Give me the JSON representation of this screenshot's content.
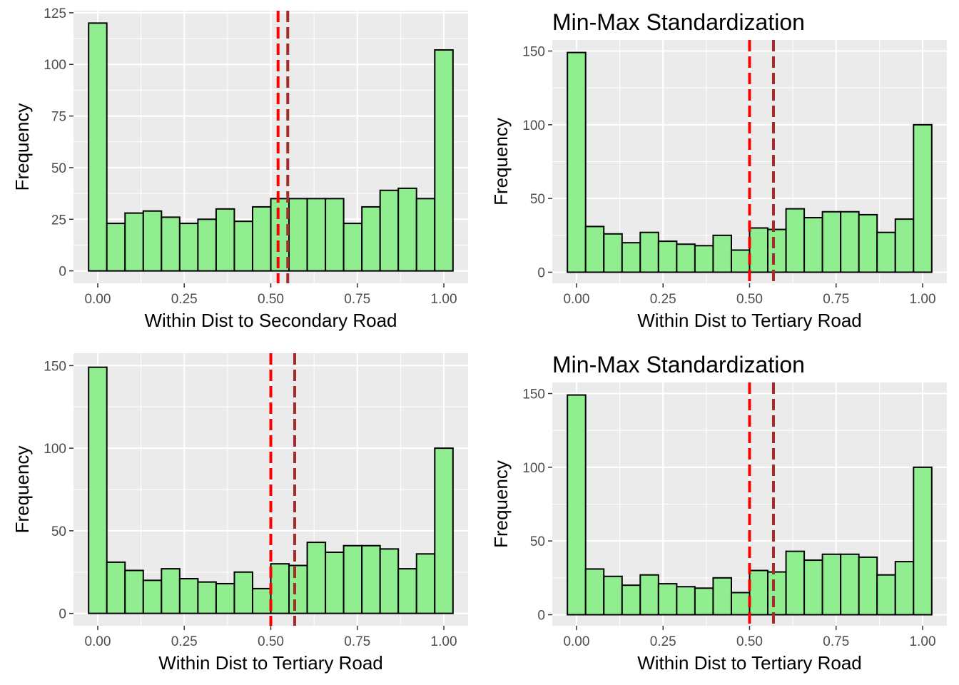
{
  "chart_data": [
    {
      "type": "bar",
      "title": "",
      "xlabel": "Within Dist to Secondary Road",
      "ylabel": "Frequency",
      "xlim": [
        -0.07,
        1.07
      ],
      "ylim": [
        -6,
        126
      ],
      "x_ticks": [
        "0.00",
        "0.25",
        "0.50",
        "0.75",
        "1.00"
      ],
      "x_tick_values": [
        0,
        0.25,
        0.5,
        0.75,
        1
      ],
      "y_ticks": [
        "0",
        "25",
        "50",
        "75",
        "100",
        "125"
      ],
      "y_tick_values": [
        0,
        25,
        50,
        75,
        100,
        125
      ],
      "bin_width": 0.0526,
      "bin_centers": [
        0,
        0.0526,
        0.1053,
        0.1579,
        0.2105,
        0.2632,
        0.3158,
        0.3684,
        0.4211,
        0.4737,
        0.5263,
        0.5789,
        0.6316,
        0.6842,
        0.7368,
        0.7895,
        0.8421,
        0.8947,
        0.9474,
        1.0
      ],
      "values": [
        120,
        23,
        28,
        29,
        26,
        23,
        25,
        30,
        24,
        31,
        35,
        35,
        35,
        35,
        23,
        31,
        39,
        40,
        35,
        107
      ],
      "vlines": [
        {
          "x": 0.521,
          "color": "#ff0000",
          "style": "dashed"
        },
        {
          "x": 0.549,
          "color": "#a52a2a",
          "style": "dashed"
        }
      ],
      "colors": {
        "fill": "#90ee90",
        "outline": "#000000",
        "panel": "#ebebeb",
        "grid": "#ffffff"
      },
      "grid": true
    },
    {
      "type": "bar",
      "title": "Min-Max Standardization",
      "xlabel": "Within Dist to Tertiary Road",
      "ylabel": "Frequency",
      "xlim": [
        -0.07,
        1.07
      ],
      "ylim": [
        -7.5,
        157.5
      ],
      "x_ticks": [
        "0.00",
        "0.25",
        "0.50",
        "0.75",
        "1.00"
      ],
      "x_tick_values": [
        0,
        0.25,
        0.5,
        0.75,
        1
      ],
      "y_ticks": [
        "0",
        "50",
        "100",
        "150"
      ],
      "y_tick_values": [
        0,
        50,
        100,
        150
      ],
      "bin_width": 0.0526,
      "bin_centers": [
        0,
        0.0526,
        0.1053,
        0.1579,
        0.2105,
        0.2632,
        0.3158,
        0.3684,
        0.4211,
        0.4737,
        0.5263,
        0.5789,
        0.6316,
        0.6842,
        0.7368,
        0.7895,
        0.8421,
        0.8947,
        0.9474,
        1.0
      ],
      "values": [
        149,
        31,
        26,
        20,
        27,
        21,
        19,
        18,
        25,
        15,
        30,
        29,
        43,
        37,
        41,
        41,
        39,
        27,
        36,
        100
      ],
      "vlines": [
        {
          "x": 0.5,
          "color": "#ff0000",
          "style": "dashed"
        },
        {
          "x": 0.569,
          "color": "#a52a2a",
          "style": "dashed"
        }
      ],
      "colors": {
        "fill": "#90ee90",
        "outline": "#000000",
        "panel": "#ebebeb",
        "grid": "#ffffff"
      },
      "grid": true
    },
    {
      "type": "bar",
      "title": "",
      "xlabel": "Within Dist to Tertiary Road",
      "ylabel": "Frequency",
      "xlim": [
        -0.07,
        1.07
      ],
      "ylim": [
        -7.5,
        157.5
      ],
      "x_ticks": [
        "0.00",
        "0.25",
        "0.50",
        "0.75",
        "1.00"
      ],
      "x_tick_values": [
        0,
        0.25,
        0.5,
        0.75,
        1
      ],
      "y_ticks": [
        "0",
        "50",
        "100",
        "150"
      ],
      "y_tick_values": [
        0,
        50,
        100,
        150
      ],
      "bin_width": 0.0526,
      "bin_centers": [
        0,
        0.0526,
        0.1053,
        0.1579,
        0.2105,
        0.2632,
        0.3158,
        0.3684,
        0.4211,
        0.4737,
        0.5263,
        0.5789,
        0.6316,
        0.6842,
        0.7368,
        0.7895,
        0.8421,
        0.8947,
        0.9474,
        1.0
      ],
      "values": [
        149,
        31,
        26,
        20,
        27,
        21,
        19,
        18,
        25,
        15,
        30,
        29,
        43,
        37,
        41,
        41,
        39,
        27,
        36,
        100
      ],
      "vlines": [
        {
          "x": 0.5,
          "color": "#ff0000",
          "style": "dashed"
        },
        {
          "x": 0.569,
          "color": "#a52a2a",
          "style": "dashed"
        }
      ],
      "colors": {
        "fill": "#90ee90",
        "outline": "#000000",
        "panel": "#ebebeb",
        "grid": "#ffffff"
      },
      "grid": true
    },
    {
      "type": "bar",
      "title": "Min-Max Standardization",
      "xlabel": "Within Dist to Tertiary Road",
      "ylabel": "Frequency",
      "xlim": [
        -0.07,
        1.07
      ],
      "ylim": [
        -7.5,
        157.5
      ],
      "x_ticks": [
        "0.00",
        "0.25",
        "0.50",
        "0.75",
        "1.00"
      ],
      "x_tick_values": [
        0,
        0.25,
        0.5,
        0.75,
        1
      ],
      "y_ticks": [
        "0",
        "50",
        "100",
        "150"
      ],
      "y_tick_values": [
        0,
        50,
        100,
        150
      ],
      "bin_width": 0.0526,
      "bin_centers": [
        0,
        0.0526,
        0.1053,
        0.1579,
        0.2105,
        0.2632,
        0.3158,
        0.3684,
        0.4211,
        0.4737,
        0.5263,
        0.5789,
        0.6316,
        0.6842,
        0.7368,
        0.7895,
        0.8421,
        0.8947,
        0.9474,
        1.0
      ],
      "values": [
        149,
        31,
        26,
        20,
        27,
        21,
        19,
        18,
        25,
        15,
        30,
        29,
        43,
        37,
        41,
        41,
        39,
        27,
        36,
        100
      ],
      "vlines": [
        {
          "x": 0.5,
          "color": "#ff0000",
          "style": "dashed"
        },
        {
          "x": 0.569,
          "color": "#a52a2a",
          "style": "dashed"
        }
      ],
      "colors": {
        "fill": "#90ee90",
        "outline": "#000000",
        "panel": "#ebebeb",
        "grid": "#ffffff"
      },
      "grid": true
    }
  ]
}
